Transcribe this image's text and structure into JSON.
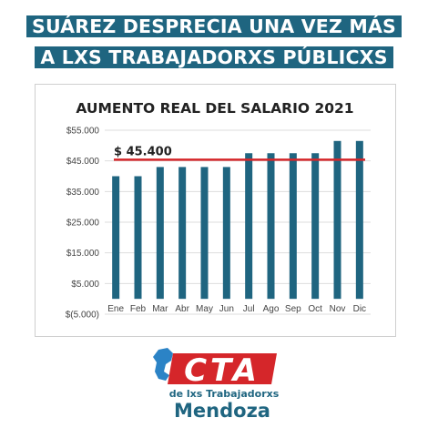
{
  "headline": {
    "line1": "SUÁREZ DESPRECIA UNA VEZ MÁS",
    "line2": "A LXS TRABAJADORXS PÚBLICXS"
  },
  "colors": {
    "headline_bg": "#1f6580",
    "bar": "#1f6580",
    "reference_line": "#d5262a",
    "logo_red": "#d5262a",
    "logo_blue": "#2b83c6"
  },
  "chart_data": {
    "type": "bar",
    "title": "AUMENTO REAL DEL SALARIO 2021",
    "categories": [
      "Ene",
      "Feb",
      "Mar",
      "Abr",
      "May",
      "Jun",
      "Jul",
      "Ago",
      "Sep",
      "Oct",
      "Nov",
      "Dic"
    ],
    "values": [
      40000,
      40000,
      43000,
      43000,
      43000,
      43000,
      47500,
      47500,
      47500,
      47500,
      51500,
      51500
    ],
    "ylim": [
      -5000,
      55000
    ],
    "y_tick_labels": [
      "$55.000",
      "$45.000",
      "$35.000",
      "$25.000",
      "$15.000",
      "$5.000",
      "$(5.000)"
    ],
    "y_tick_values": [
      55000,
      45000,
      35000,
      25000,
      15000,
      5000,
      -5000
    ],
    "grid": true,
    "reference_line": {
      "value": 45400,
      "label": "$ 45.400"
    }
  },
  "logo": {
    "wordmark": "CTA",
    "subtitle": "de lxs Trabajadorxs",
    "region": "Mendoza"
  }
}
